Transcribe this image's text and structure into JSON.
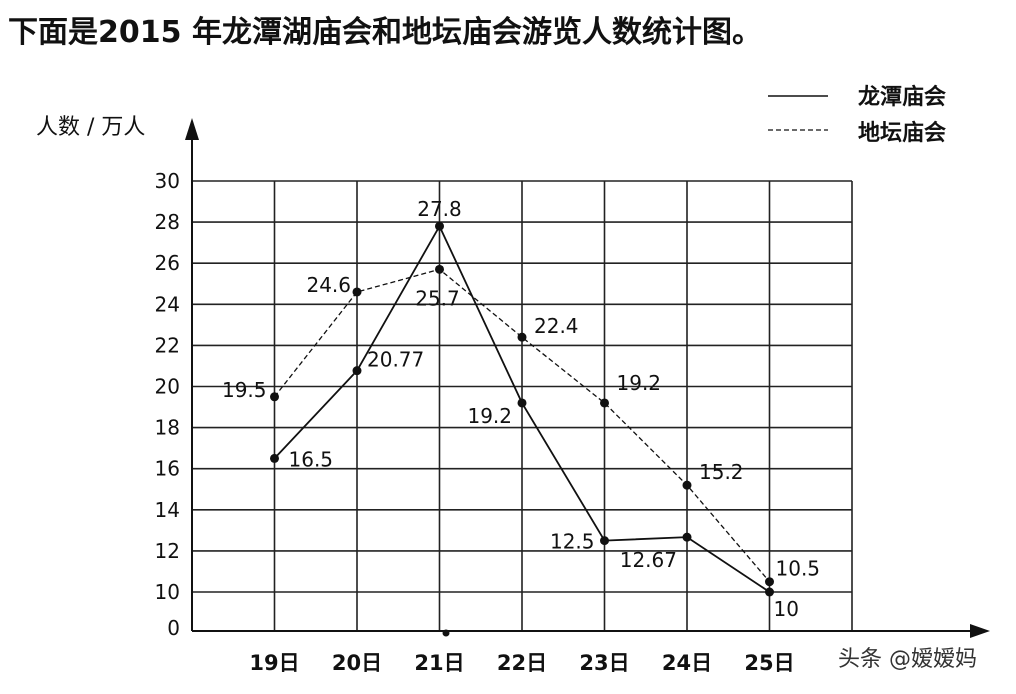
{
  "title": "下面是2015 年龙潭湖庙会和地坛庙会游览人数统计图。",
  "watermark": "头条 @嫒嫒妈",
  "chart_data": {
    "type": "line",
    "ylabel": "人数 / 万人",
    "xlabel": "",
    "categories": [
      "19日",
      "20日",
      "21日",
      "22日",
      "23日",
      "24日",
      "25日"
    ],
    "y_ticks": [
      "0",
      "10",
      "12",
      "14",
      "16",
      "18",
      "20",
      "22",
      "24",
      "26",
      "28",
      "30"
    ],
    "ylim": [
      8,
      30
    ],
    "y_axis_break": true,
    "grid": true,
    "legend_position": "top-right",
    "series": [
      {
        "name": "龙潭庙会",
        "style": "solid",
        "values": [
          16.5,
          20.77,
          27.8,
          19.2,
          12.5,
          12.67,
          10
        ],
        "labels": [
          "16.5",
          "20.77",
          "27.8",
          "19.2",
          "12.5",
          "12.67",
          "10"
        ]
      },
      {
        "name": "地坛庙会",
        "style": "dashed",
        "values": [
          19.5,
          24.6,
          25.7,
          22.4,
          19.2,
          15.2,
          10.5
        ],
        "labels": [
          "19.5",
          "24.6",
          "25.7",
          "22.4",
          "19.2",
          "15.2",
          "10.5"
        ]
      }
    ]
  }
}
